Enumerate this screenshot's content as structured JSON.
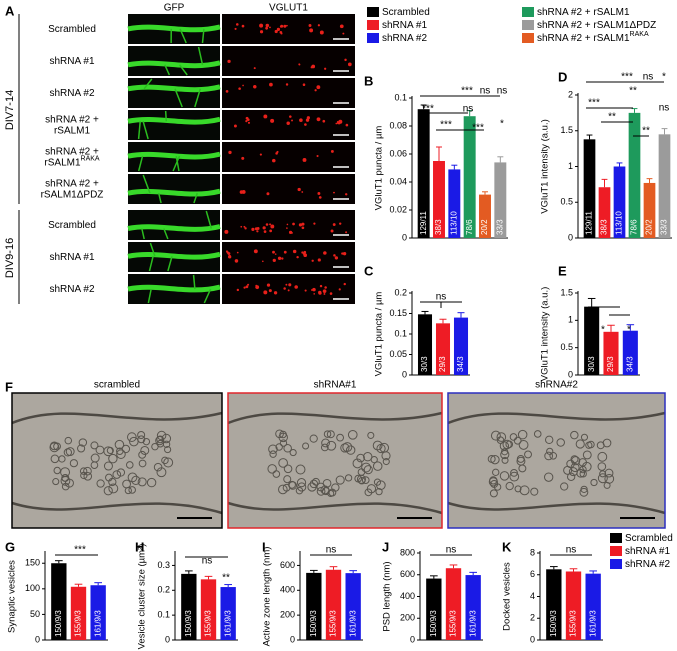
{
  "panel_labels": [
    "A",
    "B",
    "C",
    "D",
    "E",
    "F",
    "G",
    "H",
    "I",
    "J",
    "K"
  ],
  "panel_a": {
    "columns": [
      "GFP",
      "VGLUT1"
    ],
    "groups": [
      {
        "label": "DIV7-14",
        "rows": [
          {
            "lines": [
              "Scrambled"
            ]
          },
          {
            "lines": [
              "shRNA #1"
            ]
          },
          {
            "lines": [
              "shRNA #2"
            ]
          },
          {
            "lines": [
              "shRNA #2 +",
              "rSALM1"
            ]
          },
          {
            "lines": [
              "shRNA #2 +",
              "rSALM1"
            ],
            "sup": "RAKA"
          },
          {
            "lines": [
              "shRNA #2 +",
              "rSALM1ΔPDZ"
            ]
          }
        ]
      },
      {
        "label": "DIV9-16",
        "rows": [
          {
            "lines": [
              "Scrambled"
            ]
          },
          {
            "lines": [
              "shRNA #1"
            ]
          },
          {
            "lines": [
              "shRNA #2"
            ]
          }
        ]
      }
    ]
  },
  "legend_top": [
    {
      "name": "Scrambled",
      "color": "#000000"
    },
    {
      "name": "shRNA #1",
      "color": "#ee1c25"
    },
    {
      "name": "shRNA #2",
      "color": "#1a1ae6"
    },
    {
      "name": "shRNA #2 + rSALM1",
      "color": "#1e9a5c"
    },
    {
      "name": "shRNA #2 + rSALM1ΔPDZ",
      "color": "#9b9b9b"
    },
    {
      "name": "shRNA #2 + rSALM1",
      "sup": "RAKA",
      "color": "#e35b22"
    }
  ],
  "panel_f": {
    "images": [
      {
        "label": "scrambled",
        "border": "#000000"
      },
      {
        "label": "shRNA#1",
        "border": "#e0262b"
      },
      {
        "label": "shRNA#2",
        "border": "#2b2fbf"
      }
    ]
  },
  "legend_bottom": [
    {
      "name": "Scrambled",
      "color": "#000000"
    },
    {
      "name": "shRNA #1",
      "color": "#ee1c25"
    },
    {
      "name": "shRNA #2",
      "color": "#1a1ae6"
    }
  ],
  "chart_data": [
    {
      "type": "bar",
      "ylabel": "VGluT1 puncta / µm",
      "values": [
        0.092,
        0.055,
        0.049,
        0.087,
        0.031,
        0.054
      ],
      "errors": [
        0.003,
        0.01,
        0.003,
        0.004,
        0.002,
        0.004
      ],
      "colors": [
        "#000000",
        "#ee1c25",
        "#1a1ae6",
        "#1e9a5c",
        "#e35b22",
        "#9b9b9b"
      ],
      "n_labels": [
        "129/11",
        "38/3",
        "113/10",
        "78/6",
        "20/2",
        "33/3"
      ],
      "ylim": [
        0,
        0.1
      ],
      "yticks": [
        0,
        0.02,
        0.04,
        0.06,
        0.08,
        0.1
      ],
      "annotations": [
        "***",
        "ns",
        "ns",
        "***",
        "ns",
        "***",
        "***",
        "*"
      ]
    },
    {
      "type": "bar",
      "ylabel": "VGluT1 puncta / µm",
      "values": [
        0.148,
        0.126,
        0.14
      ],
      "errors": [
        0.007,
        0.01,
        0.012
      ],
      "colors": [
        "#000000",
        "#ee1c25",
        "#1a1ae6"
      ],
      "n_labels": [
        "30/3",
        "29/3",
        "34/3"
      ],
      "ylim": [
        0,
        0.2
      ],
      "yticks": [
        0,
        0.05,
        0.1,
        0.15,
        0.2
      ],
      "annotations": [
        "ns"
      ]
    },
    {
      "type": "bar",
      "ylabel": "VGluT1 intensity (a.u.)",
      "values": [
        1.38,
        0.71,
        1.0,
        1.75,
        0.77,
        1.45
      ],
      "errors": [
        0.06,
        0.11,
        0.05,
        0.06,
        0.06,
        0.08
      ],
      "colors": [
        "#000000",
        "#ee1c25",
        "#1a1ae6",
        "#1e9a5c",
        "#e35b22",
        "#9b9b9b"
      ],
      "n_labels": [
        "129/11",
        "38/3",
        "113/10",
        "78/6",
        "20/2",
        "33/3"
      ],
      "ylim": [
        0,
        2
      ],
      "yticks": [
        0,
        0.5,
        1,
        1.5,
        2
      ],
      "annotations": [
        "***",
        "ns",
        "*",
        "**",
        "***",
        "**",
        "**",
        "ns"
      ]
    },
    {
      "type": "bar",
      "ylabel": "VGluT1 intensity (a.u.)",
      "values": [
        1.25,
        0.79,
        0.81
      ],
      "errors": [
        0.15,
        0.12,
        0.11
      ],
      "colors": [
        "#000000",
        "#ee1c25",
        "#1a1ae6"
      ],
      "n_labels": [
        "30/3",
        "29/3",
        "34/3"
      ],
      "ylim": [
        0,
        1.5
      ],
      "yticks": [
        0,
        0.5,
        1,
        1.5
      ],
      "annotations": [
        "*",
        "*"
      ]
    },
    {
      "type": "bar",
      "ylabel": "Synaptic vesicles",
      "values": [
        150,
        104,
        107
      ],
      "errors": [
        5,
        5,
        5
      ],
      "colors": [
        "#000000",
        "#ee1c25",
        "#1a1ae6"
      ],
      "n_labels": [
        "150/9/3",
        "155/9/3",
        "161/9/3"
      ],
      "ylim": [
        0,
        170
      ],
      "yticks": [
        0,
        50,
        100,
        150
      ],
      "annotations": [
        "***"
      ]
    },
    {
      "type": "bar",
      "ylabel": "Vesicle cluster size (µm²)",
      "values": [
        0.266,
        0.244,
        0.213
      ],
      "errors": [
        0.012,
        0.012,
        0.01
      ],
      "colors": [
        "#000000",
        "#ee1c25",
        "#1a1ae6"
      ],
      "n_labels": [
        "150/9/3",
        "155/9/3",
        "161/9/3"
      ],
      "ylim": [
        0,
        0.35
      ],
      "yticks": [
        0,
        0.1,
        0.2,
        0.3
      ],
      "annotations": [
        "ns",
        "**"
      ]
    },
    {
      "type": "bar",
      "ylabel": "Active zone length (nm)",
      "values": [
        540,
        565,
        538
      ],
      "errors": [
        20,
        25,
        20
      ],
      "colors": [
        "#000000",
        "#ee1c25",
        "#1a1ae6"
      ],
      "n_labels": [
        "150/9/3",
        "155/9/3",
        "161/9/3"
      ],
      "ylim": [
        0,
        700
      ],
      "yticks": [
        0,
        200,
        400,
        600
      ],
      "annotations": [
        "ns"
      ]
    },
    {
      "type": "bar",
      "ylabel": "PSD length (nm)",
      "values": [
        565,
        660,
        597
      ],
      "errors": [
        25,
        30,
        25
      ],
      "colors": [
        "#000000",
        "#ee1c25",
        "#1a1ae6"
      ],
      "n_labels": [
        "150/9/3",
        "155/9/3",
        "161/9/3"
      ],
      "ylim": [
        0,
        800
      ],
      "yticks": [
        0,
        200,
        400,
        600,
        800
      ],
      "annotations": [
        "ns"
      ]
    },
    {
      "type": "bar",
      "ylabel": "Docked vesicles",
      "values": [
        6.5,
        6.3,
        6.1
      ],
      "errors": [
        0.25,
        0.25,
        0.25
      ],
      "colors": [
        "#000000",
        "#ee1c25",
        "#1a1ae6"
      ],
      "n_labels": [
        "150/9/3",
        "155/9/3",
        "161/9/3"
      ],
      "ylim": [
        0,
        8
      ],
      "yticks": [
        0,
        2,
        4,
        6,
        8
      ],
      "annotations": [
        "ns"
      ]
    }
  ]
}
